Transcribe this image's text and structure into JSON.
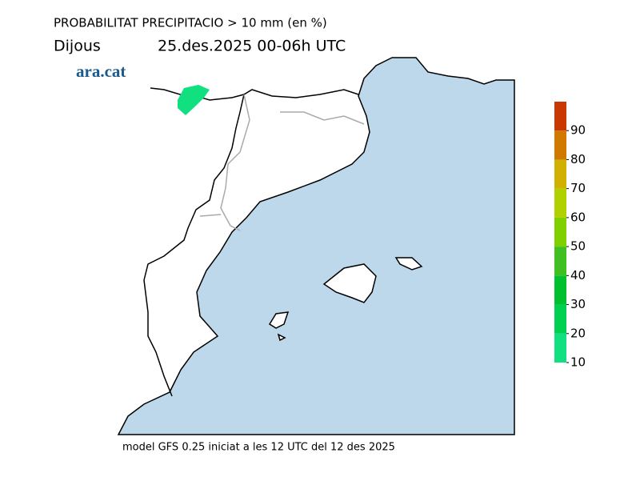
{
  "header": {
    "title": "PROBABILITAT PRECIPITACIO > 10 mm (en %)",
    "day": "Dijous",
    "period": "25.des.2025 00-06h UTC",
    "logo": "ara.cat"
  },
  "footer": "model GFS 0.25 iniciat a les 12 UTC del 12 des 2025",
  "colorbar": {
    "lim": [
      10,
      100
    ],
    "ticks": [
      10,
      20,
      30,
      40,
      50,
      60,
      70,
      80,
      90
    ],
    "colors": [
      "#10e080",
      "#00d050",
      "#00c030",
      "#40c020",
      "#80d000",
      "#b0d000",
      "#d0b000",
      "#d07800",
      "#c83800"
    ]
  }
}
